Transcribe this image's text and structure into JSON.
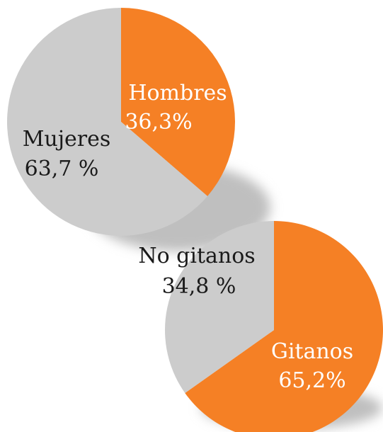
{
  "colors": {
    "orange": "#F58025",
    "gray": "#CCCCCC",
    "shadow": "#BFBFBF",
    "label_dark": "#1A1A1A",
    "label_light": "#FFFFFF"
  },
  "chart_data": [
    {
      "type": "pie",
      "start_angle_deg": 0,
      "direction": "clockwise",
      "slices": [
        {
          "label": "Hombres",
          "value_text": "36,3%",
          "value": 36.3,
          "color": "#F58025",
          "label_color": "#FFFFFF"
        },
        {
          "label": "Mujeres",
          "value_text": "63,7 %",
          "value": 63.7,
          "color": "#CCCCCC",
          "label_color": "#1A1A1A"
        }
      ]
    },
    {
      "type": "pie",
      "start_angle_deg": 0,
      "direction": "clockwise",
      "slices": [
        {
          "label": "Gitanos",
          "value_text": "65,2%",
          "value": 65.2,
          "color": "#F58025",
          "label_color": "#FFFFFF"
        },
        {
          "label": "No gitanos",
          "value_text": "34,8 %",
          "value": 34.8,
          "color": "#CCCCCC",
          "label_color": "#1A1A1A"
        }
      ]
    }
  ]
}
